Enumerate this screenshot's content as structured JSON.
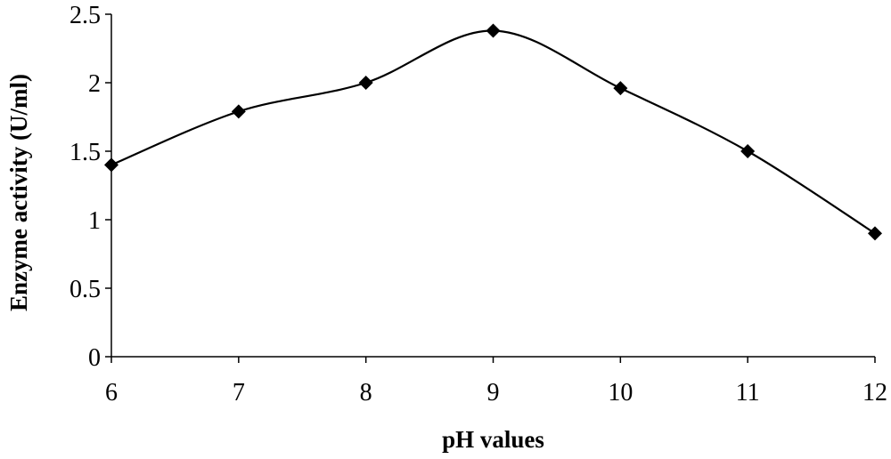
{
  "chart_data": {
    "type": "line",
    "title": "",
    "xlabel": "pH values",
    "ylabel": "Enzyme activity (U/ml)",
    "x": [
      6,
      7,
      8,
      9,
      10,
      11,
      12
    ],
    "xlim": [
      6,
      12
    ],
    "ylim": [
      0,
      2.5
    ],
    "xticks": [
      "6",
      "7",
      "8",
      "9",
      "10",
      "11",
      "12"
    ],
    "yticks": [
      "0",
      "0.5",
      "1",
      "1.5",
      "2",
      "2.5"
    ],
    "grid": false,
    "smooth": true,
    "marker": "diamond",
    "series": [
      {
        "values": [
          1.4,
          1.79,
          2.0,
          2.38,
          1.96,
          1.5,
          0.9
        ],
        "color": "#000000"
      }
    ]
  }
}
